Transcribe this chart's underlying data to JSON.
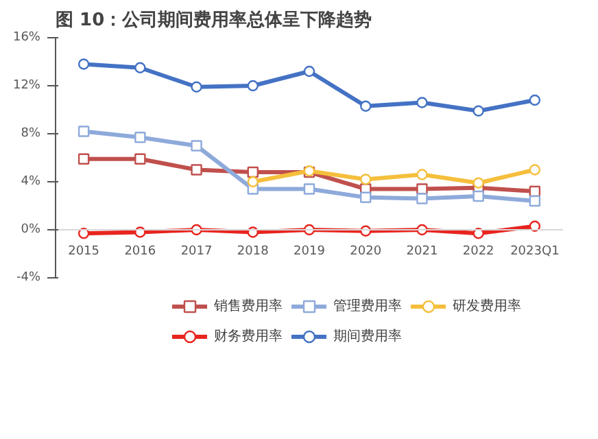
{
  "chart_data": {
    "type": "line",
    "title": "图 10：公司期间费用率总体呈下降趋势",
    "categories": [
      "2015",
      "2016",
      "2017",
      "2018",
      "2019",
      "2020",
      "2021",
      "2022",
      "2023Q1"
    ],
    "series": [
      {
        "name": "销售费用率",
        "color": "#c0504d",
        "marker": "square",
        "values": [
          5.9,
          5.9,
          5.0,
          4.8,
          4.8,
          3.4,
          3.4,
          3.5,
          3.2
        ]
      },
      {
        "name": "管理费用率",
        "color": "#8eaadb",
        "marker": "square",
        "values": [
          8.2,
          7.7,
          7.0,
          3.4,
          3.4,
          2.7,
          2.6,
          2.8,
          2.4
        ]
      },
      {
        "name": "研发费用率",
        "color": "#f5bf3c",
        "marker": "circle",
        "values": [
          null,
          null,
          null,
          4.0,
          4.9,
          4.2,
          4.6,
          3.9,
          5.0
        ]
      },
      {
        "name": "财务费用率",
        "color": "#e8251f",
        "marker": "circle",
        "values": [
          -0.3,
          -0.2,
          0.0,
          -0.2,
          0.0,
          -0.1,
          0.0,
          -0.3,
          0.3
        ]
      },
      {
        "name": "期间费用率",
        "color": "#4472c4",
        "marker": "circle",
        "values": [
          13.8,
          13.5,
          11.9,
          12.0,
          13.2,
          10.3,
          10.6,
          9.9,
          10.8
        ]
      }
    ],
    "ylim": [
      -4,
      16
    ],
    "yticks": [
      {
        "value": -4,
        "label": "-4%"
      },
      {
        "value": 0,
        "label": "0%"
      },
      {
        "value": 4,
        "label": "4%"
      },
      {
        "value": 8,
        "label": "8%"
      },
      {
        "value": 12,
        "label": "12%"
      },
      {
        "value": 16,
        "label": "16%"
      }
    ],
    "grid": false,
    "legend": "bottom",
    "line_style": "solid"
  }
}
